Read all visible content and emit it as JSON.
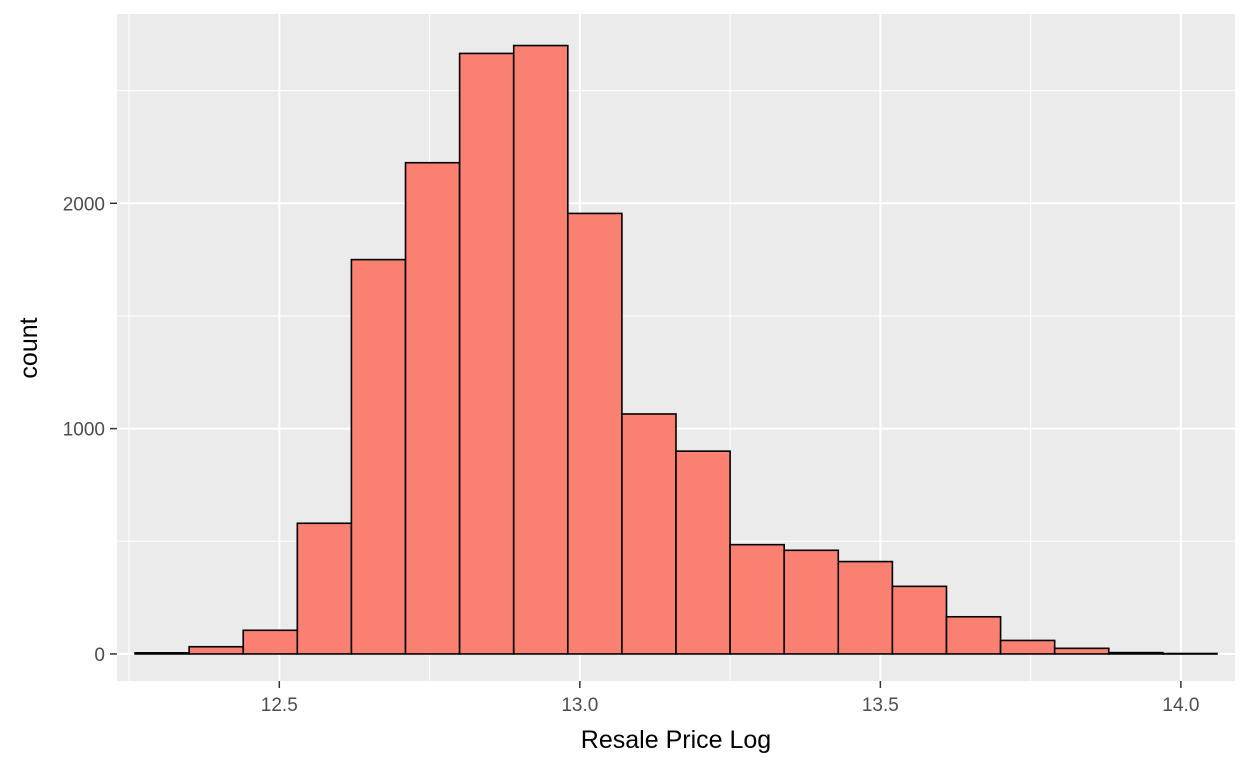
{
  "chart_data": {
    "type": "bar",
    "subtype": "histogram",
    "xlabel": "Resale Price Log",
    "ylabel": "count",
    "xlim": [
      12.23,
      14.09
    ],
    "ylim": [
      -120,
      2840
    ],
    "x_ticks": [
      "12.5",
      "13.0",
      "13.5",
      "14.0"
    ],
    "y_ticks": [
      "0",
      "1000",
      "2000"
    ],
    "grid": true,
    "bin_width": 0.09,
    "bins": [
      {
        "x0": 12.26,
        "x1": 12.35,
        "count": 5
      },
      {
        "x0": 12.35,
        "x1": 12.44,
        "count": 32
      },
      {
        "x0": 12.44,
        "x1": 12.53,
        "count": 105
      },
      {
        "x0": 12.53,
        "x1": 12.62,
        "count": 580
      },
      {
        "x0": 12.62,
        "x1": 12.71,
        "count": 1750
      },
      {
        "x0": 12.71,
        "x1": 12.8,
        "count": 2180
      },
      {
        "x0": 12.8,
        "x1": 12.89,
        "count": 2665
      },
      {
        "x0": 12.89,
        "x1": 12.98,
        "count": 2700
      },
      {
        "x0": 12.98,
        "x1": 13.07,
        "count": 1955
      },
      {
        "x0": 13.07,
        "x1": 13.16,
        "count": 1065
      },
      {
        "x0": 13.16,
        "x1": 13.25,
        "count": 900
      },
      {
        "x0": 13.25,
        "x1": 13.34,
        "count": 485
      },
      {
        "x0": 13.34,
        "x1": 13.43,
        "count": 460
      },
      {
        "x0": 13.43,
        "x1": 13.52,
        "count": 410
      },
      {
        "x0": 13.52,
        "x1": 13.61,
        "count": 300
      },
      {
        "x0": 13.61,
        "x1": 13.7,
        "count": 165
      },
      {
        "x0": 13.7,
        "x1": 13.79,
        "count": 60
      },
      {
        "x0": 13.79,
        "x1": 13.88,
        "count": 25
      },
      {
        "x0": 13.88,
        "x1": 13.97,
        "count": 6
      },
      {
        "x0": 13.97,
        "x1": 14.06,
        "count": 2
      }
    ],
    "colors": {
      "bar_fill": "#fa8072",
      "bar_stroke": "#000000",
      "panel_background": "#ebebeb",
      "grid_major": "#ffffff",
      "tick_label": "#4d4d4d"
    }
  }
}
